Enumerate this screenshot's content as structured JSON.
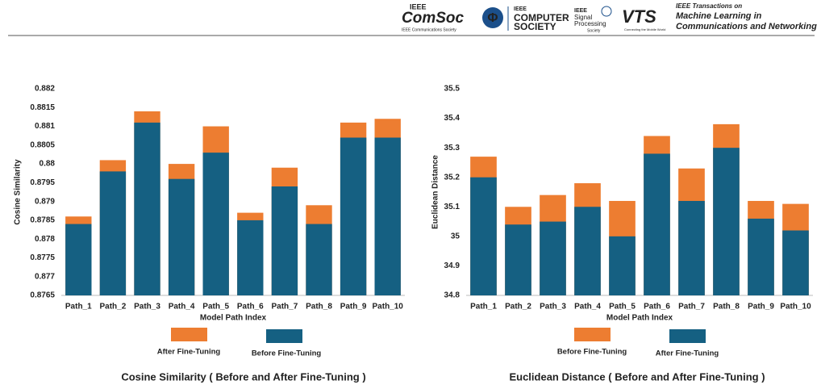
{
  "header": {
    "comsoc": {
      "top": "IEEE",
      "name": "ComSoc",
      "sub": "IEEE Communications Society"
    },
    "computer": {
      "top": "IEEE",
      "line1": "COMPUTER",
      "line2": "SOCIETY"
    },
    "signal": {
      "top": "IEEE",
      "line1": "Signal",
      "line2": "Processing",
      "line3": "Society"
    },
    "vts": {
      "name": "VTS",
      "sub": "Connecting the Mobile World"
    },
    "journal": {
      "line1": "IEEE Transactions on",
      "line2": "Machine Learning in",
      "line3": "Communications and Networking"
    }
  },
  "chart_data": [
    {
      "type": "bar",
      "barmode": "overlay",
      "title": "Cosine Similarity ( Before and After Fine-Tuning )",
      "x_label": "Model Path Index",
      "y_label": "Cosine Similarity",
      "categories": [
        "Path_1",
        "Path_2",
        "Path_3",
        "Path_4",
        "Path_5",
        "Path_6",
        "Path_7",
        "Path_8",
        "Path_9",
        "Path_10"
      ],
      "series": [
        {
          "name": "After Fine-Tuning",
          "color": "#ed7d31",
          "values": [
            0.8786,
            0.8801,
            0.8814,
            0.88,
            0.881,
            0.8787,
            0.8799,
            0.8789,
            0.8811,
            0.8812
          ]
        },
        {
          "name": "Before Fine-Tuning",
          "color": "#156082",
          "values": [
            0.8784,
            0.8798,
            0.8811,
            0.8796,
            0.8803,
            0.8785,
            0.8794,
            0.8784,
            0.8807,
            0.8807
          ]
        }
      ],
      "ylim": [
        0.8765,
        0.882
      ],
      "yticks": [
        0.8765,
        0.877,
        0.8775,
        0.878,
        0.8785,
        0.879,
        0.8795,
        0.88,
        0.8805,
        0.881,
        0.8815,
        0.882
      ],
      "grid": false,
      "legend": "bottom"
    },
    {
      "type": "bar",
      "barmode": "overlay",
      "title": "Euclidean Distance ( Before and After Fine-Tuning )",
      "x_label": "Model Path Index",
      "y_label": "Euclidean Distance",
      "categories": [
        "Path_1",
        "Path_2",
        "Path_3",
        "Path_4",
        "Path_5",
        "Path_6",
        "Path_7",
        "Path_8",
        "Path_9",
        "Path_10"
      ],
      "series": [
        {
          "name": "Before Fine-Tuning",
          "color": "#ed7d31",
          "values": [
            35.27,
            35.1,
            35.14,
            35.18,
            35.12,
            35.34,
            35.23,
            35.38,
            35.12,
            35.11
          ]
        },
        {
          "name": "After Fine-Tuning",
          "color": "#156082",
          "values": [
            35.2,
            35.04,
            35.05,
            35.1,
            35.0,
            35.28,
            35.12,
            35.3,
            35.06,
            35.02
          ]
        }
      ],
      "ylim": [
        34.8,
        35.5
      ],
      "yticks": [
        34.8,
        34.9,
        35,
        35.1,
        35.2,
        35.3,
        35.4,
        35.5
      ],
      "grid": false,
      "legend": "bottom"
    }
  ]
}
